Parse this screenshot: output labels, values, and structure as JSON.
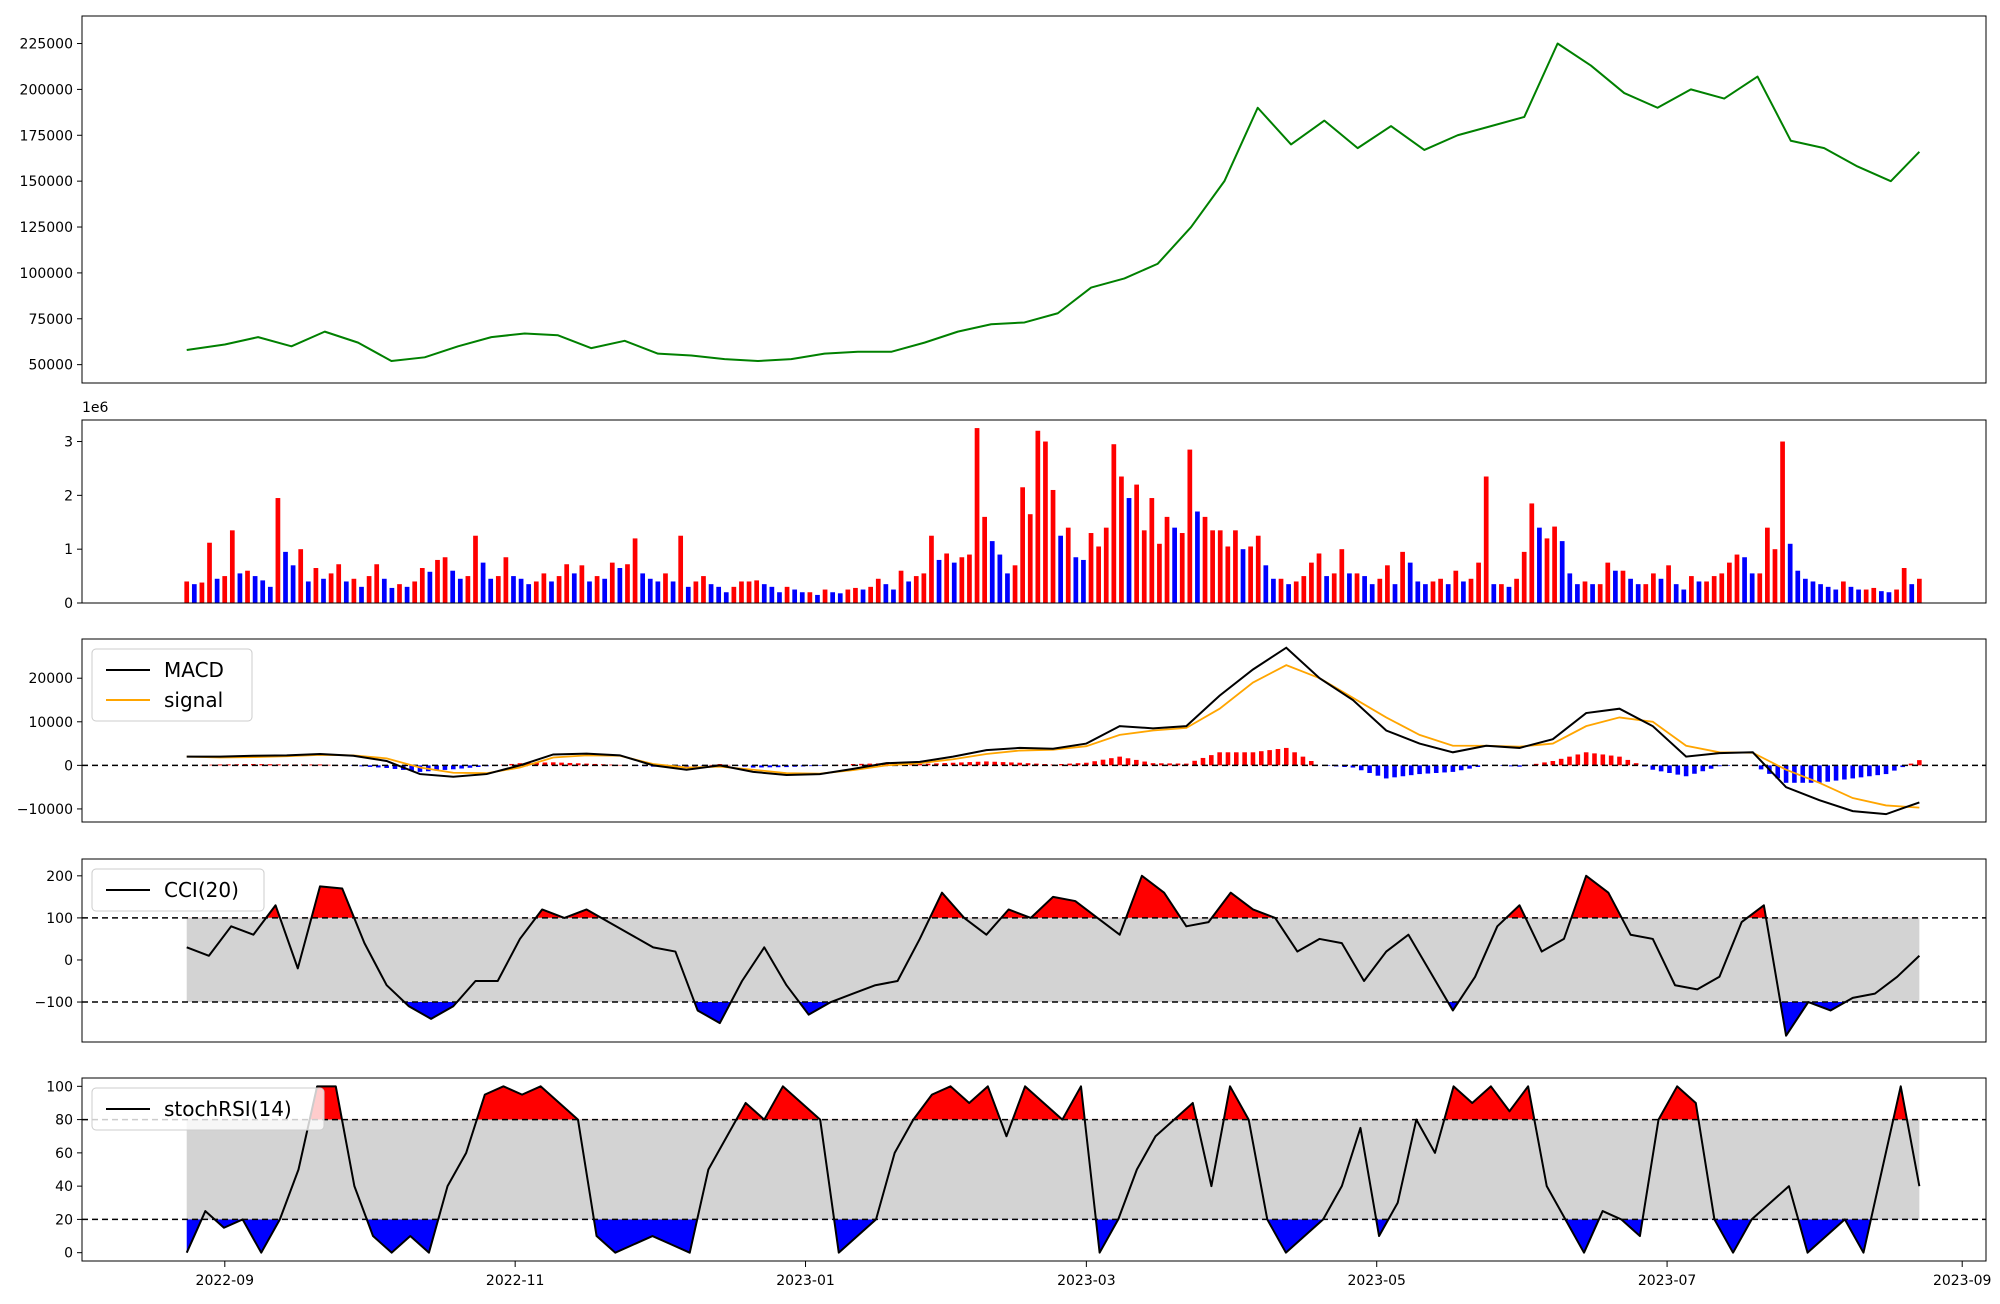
{
  "chart_data": [
    {
      "id": "price",
      "type": "line",
      "color": "#008000",
      "ylim": [
        40000,
        240000
      ],
      "yticks": [
        50000,
        75000,
        100000,
        125000,
        150000,
        175000,
        200000,
        225000
      ],
      "ytick_labels": [
        "50000",
        "75000",
        "100000",
        "125000",
        "150000",
        "175000",
        "200000",
        "225000"
      ],
      "x_dates": [
        "2022-08-24",
        "2022-09-01",
        "2022-09-08",
        "2022-09-15",
        "2022-09-22",
        "2022-09-29",
        "2022-10-06",
        "2022-10-13",
        "2022-10-20",
        "2022-10-27",
        "2022-11-03",
        "2022-11-10",
        "2022-11-17",
        "2022-11-24",
        "2022-12-01",
        "2022-12-08",
        "2022-12-15",
        "2022-12-22",
        "2022-12-29",
        "2023-01-05",
        "2023-01-12",
        "2023-01-19",
        "2023-01-26",
        "2023-02-02",
        "2023-02-09",
        "2023-02-16",
        "2023-02-23",
        "2023-03-02",
        "2023-03-09",
        "2023-03-16",
        "2023-03-23",
        "2023-03-30",
        "2023-04-06",
        "2023-04-13",
        "2023-04-20",
        "2023-04-27",
        "2023-05-04",
        "2023-05-11",
        "2023-05-18",
        "2023-05-25",
        "2023-06-01",
        "2023-06-08",
        "2023-06-15",
        "2023-06-22",
        "2023-06-29",
        "2023-07-06",
        "2023-07-13",
        "2023-07-20",
        "2023-07-27",
        "2023-08-03",
        "2023-08-10",
        "2023-08-17",
        "2023-08-23"
      ],
      "values": [
        58000,
        61000,
        65000,
        60000,
        68000,
        62000,
        52000,
        54000,
        60000,
        65000,
        67000,
        66000,
        59000,
        63000,
        56000,
        55000,
        53000,
        52000,
        53000,
        56000,
        57000,
        57000,
        62000,
        68000,
        72000,
        73000,
        78000,
        92000,
        97000,
        105000,
        125000,
        150000,
        190000,
        170000,
        183000,
        168000,
        180000,
        167000,
        175000,
        180000,
        185000,
        225000,
        213000,
        198000,
        190000,
        200000,
        195000,
        207000,
        172000,
        168000,
        158000,
        150000,
        166000
      ]
    },
    {
      "id": "volume",
      "type": "bar",
      "ylim": [
        0,
        3400000
      ],
      "scale_label": "1e6",
      "yticks": [
        0,
        1000000,
        2000000,
        3000000
      ],
      "ytick_labels": [
        "0",
        "1",
        "2",
        "3"
      ],
      "up_color": "#ff0000",
      "down_color": "#0000ff",
      "x_start": "2022-08-24",
      "x_end": "2023-08-23",
      "values": [
        0.4,
        0.35,
        0.38,
        1.12,
        0.45,
        0.5,
        1.35,
        0.55,
        0.6,
        0.5,
        0.42,
        0.3,
        1.95,
        0.95,
        0.7,
        1.0,
        0.4,
        0.65,
        0.45,
        0.55,
        0.72,
        0.4,
        0.45,
        0.3,
        0.5,
        0.72,
        0.45,
        0.28,
        0.35,
        0.3,
        0.4,
        0.65,
        0.58,
        0.8,
        0.85,
        0.6,
        0.45,
        0.5,
        1.25,
        0.75,
        0.45,
        0.5,
        0.85,
        0.5,
        0.45,
        0.35,
        0.4,
        0.55,
        0.4,
        0.5,
        0.72,
        0.55,
        0.7,
        0.4,
        0.5,
        0.45,
        0.75,
        0.65,
        0.72,
        1.2,
        0.55,
        0.45,
        0.4,
        0.55,
        0.4,
        1.25,
        0.3,
        0.4,
        0.5,
        0.35,
        0.3,
        0.2,
        0.3,
        0.4,
        0.4,
        0.42,
        0.35,
        0.3,
        0.2,
        0.3,
        0.25,
        0.2,
        0.2,
        0.15,
        0.25,
        0.2,
        0.18,
        0.25,
        0.28,
        0.25,
        0.3,
        0.45,
        0.35,
        0.25,
        0.6,
        0.4,
        0.5,
        0.55,
        1.25,
        0.8,
        0.92,
        0.75,
        0.85,
        0.9,
        3.25,
        1.6,
        1.15,
        0.9,
        0.55,
        0.7,
        2.15,
        1.65,
        3.2,
        3.0,
        2.1,
        1.25,
        1.4,
        0.85,
        0.8,
        1.3,
        1.05,
        1.4,
        2.95,
        2.35,
        1.95,
        2.2,
        1.35,
        1.95,
        1.1,
        1.6,
        1.4,
        1.3,
        2.85,
        1.7,
        1.6,
        1.35,
        1.35,
        1.05,
        1.35,
        1.0,
        1.05,
        1.25,
        0.7,
        0.45,
        0.45,
        0.35,
        0.4,
        0.5,
        0.75,
        0.92,
        0.5,
        0.55,
        1.0,
        0.55,
        0.55,
        0.5,
        0.35,
        0.45,
        0.7,
        0.35,
        0.95,
        0.75,
        0.4,
        0.35,
        0.4,
        0.45,
        0.35,
        0.6,
        0.4,
        0.45,
        0.75,
        2.35,
        0.35,
        0.35,
        0.3,
        0.45,
        0.95,
        1.85,
        1.4,
        1.2,
        1.42,
        1.15,
        0.55,
        0.35,
        0.4,
        0.35,
        0.35,
        0.75,
        0.6,
        0.6,
        0.45,
        0.35,
        0.35,
        0.55,
        0.45,
        0.7,
        0.35,
        0.25,
        0.5,
        0.4,
        0.4,
        0.5,
        0.55,
        0.75,
        0.9,
        0.85,
        0.55,
        0.55,
        1.4,
        1.0,
        3.0,
        1.1,
        0.6,
        0.45,
        0.4,
        0.35,
        0.3,
        0.25,
        0.4,
        0.3,
        0.25,
        0.25,
        0.28,
        0.22,
        0.2,
        0.25,
        0.65,
        0.35,
        0.45
      ]
    },
    {
      "id": "macd",
      "type": "line",
      "ylim": [
        -13000,
        29000
      ],
      "yticks": [
        -10000,
        0,
        10000,
        20000
      ],
      "ytick_labels": [
        "−10000",
        "0",
        "10000",
        "20000"
      ],
      "hist_up_color": "#ff0000",
      "hist_down_color": "#0000ff",
      "zero_line": 0,
      "x_start": "2022-08-24",
      "x_end": "2023-08-23",
      "series": [
        {
          "name": "MACD",
          "color": "#000000",
          "values": [
            2000,
            2000,
            2200,
            2300,
            2600,
            2200,
            1000,
            -2000,
            -2600,
            -2000,
            0,
            2500,
            2700,
            2300,
            0,
            -1000,
            0,
            -1500,
            -2200,
            -2000,
            -800,
            500,
            800,
            2000,
            3500,
            4000,
            3800,
            5000,
            9000,
            8500,
            9000,
            16000,
            22000,
            27000,
            20000,
            15000,
            8000,
            5000,
            3000,
            4500,
            4000,
            6000,
            12000,
            13000,
            9000,
            2000,
            2800,
            3000,
            -5000,
            -8000,
            -10500,
            -11200,
            -8500
          ]
        },
        {
          "name": "signal",
          "color": "#ffa500",
          "values": [
            2000,
            1800,
            1900,
            2100,
            2400,
            2300,
            1600,
            -500,
            -1700,
            -1800,
            -500,
            1800,
            2300,
            2200,
            300,
            -500,
            -300,
            -1000,
            -1800,
            -1900,
            -1100,
            0,
            500,
            1400,
            2600,
            3400,
            3600,
            4400,
            7000,
            8000,
            8600,
            13000,
            19000,
            23000,
            20000,
            15500,
            11000,
            7000,
            4500,
            4500,
            4300,
            5000,
            9000,
            11000,
            10000,
            4500,
            3000,
            2900,
            -1000,
            -4000,
            -7500,
            -9200,
            -9700
          ]
        },
        {
          "name": "histogram",
          "values": [
            0,
            200,
            300,
            200,
            200,
            -100,
            -600,
            -1500,
            -900,
            -200,
            500,
            700,
            400,
            100,
            -300,
            -500,
            300,
            -500,
            -400,
            -100,
            300,
            500,
            300,
            600,
            900,
            600,
            200,
            600,
            2000,
            500,
            400,
            3000,
            3000,
            4000,
            0,
            -500,
            -3000,
            -2000,
            -1500,
            0,
            -300,
            1000,
            3000,
            2000,
            -1000,
            -2500,
            -200,
            100,
            -4000,
            -4000,
            -3000,
            -2000,
            1200
          ]
        }
      ]
    },
    {
      "id": "cci",
      "type": "line",
      "ylim": [
        -195,
        240
      ],
      "yticks": [
        -100,
        0,
        100,
        200
      ],
      "ytick_labels": [
        "−100",
        "0",
        "100",
        "200"
      ],
      "upper_band": 100,
      "lower_band": -100,
      "band_fill_color": "#d3d3d3",
      "over_color": "#ff0000",
      "under_color": "#0000ff",
      "x_start": "2022-08-24",
      "x_end": "2023-08-23",
      "series": [
        {
          "name": "CCI(20)",
          "color": "#000000",
          "values": [
            30,
            10,
            80,
            60,
            130,
            -20,
            175,
            170,
            40,
            -60,
            -110,
            -140,
            -110,
            -50,
            -50,
            50,
            120,
            100,
            120,
            90,
            60,
            30,
            20,
            -120,
            -150,
            -50,
            30,
            -60,
            -130,
            -100,
            -80,
            -60,
            -50,
            50,
            160,
            100,
            60,
            120,
            100,
            150,
            140,
            100,
            60,
            200,
            160,
            80,
            90,
            160,
            120,
            100,
            20,
            50,
            40,
            -50,
            20,
            60,
            -30,
            -120,
            -40,
            80,
            130,
            20,
            50,
            200,
            160,
            60,
            50,
            -60,
            -70,
            -40,
            90,
            130,
            -180,
            -100,
            -120,
            -90,
            -80,
            -40,
            10
          ]
        }
      ]
    },
    {
      "id": "stochrsi",
      "type": "line",
      "ylim": [
        -5,
        105
      ],
      "yticks": [
        0,
        20,
        40,
        60,
        80,
        100
      ],
      "ytick_labels": [
        "0",
        "20",
        "40",
        "60",
        "80",
        "100"
      ],
      "upper_band": 80,
      "lower_band": 20,
      "band_fill_color": "#d3d3d3",
      "over_color": "#ff0000",
      "under_color": "#0000ff",
      "x_start": "2022-08-24",
      "x_end": "2023-08-23",
      "series": [
        {
          "name": "stochRSI(14)",
          "color": "#000000",
          "values": [
            0,
            25,
            15,
            20,
            0,
            20,
            50,
            100,
            100,
            40,
            10,
            0,
            10,
            0,
            40,
            60,
            95,
            100,
            95,
            100,
            90,
            80,
            10,
            0,
            5,
            10,
            5,
            0,
            50,
            70,
            90,
            80,
            100,
            90,
            80,
            0,
            10,
            20,
            60,
            80,
            95,
            100,
            90,
            100,
            70,
            100,
            90,
            80,
            100,
            0,
            20,
            50,
            70,
            80,
            90,
            40,
            100,
            80,
            20,
            0,
            10,
            20,
            40,
            75,
            10,
            30,
            80,
            60,
            100,
            90,
            100,
            85,
            100,
            40,
            20,
            0,
            25,
            20,
            10,
            80,
            100,
            90,
            20,
            0,
            20,
            30,
            40,
            0,
            10,
            20,
            0,
            50,
            100,
            40
          ]
        }
      ]
    }
  ],
  "x_axis": {
    "domain": [
      "2022-08-02",
      "2023-09-06"
    ],
    "ticks": [
      "2022-09-01",
      "2022-11-01",
      "2023-01-01",
      "2023-03-01",
      "2023-05-01",
      "2023-07-01",
      "2023-09-01"
    ],
    "tick_labels": [
      "2022-09",
      "2022-11",
      "2023-01",
      "2023-03",
      "2023-05",
      "2023-07",
      "2023-09"
    ]
  },
  "legends": {
    "macd": [
      "MACD",
      "signal"
    ],
    "cci": [
      "CCI(20)"
    ],
    "stochrsi": [
      "stochRSI(14)"
    ]
  }
}
